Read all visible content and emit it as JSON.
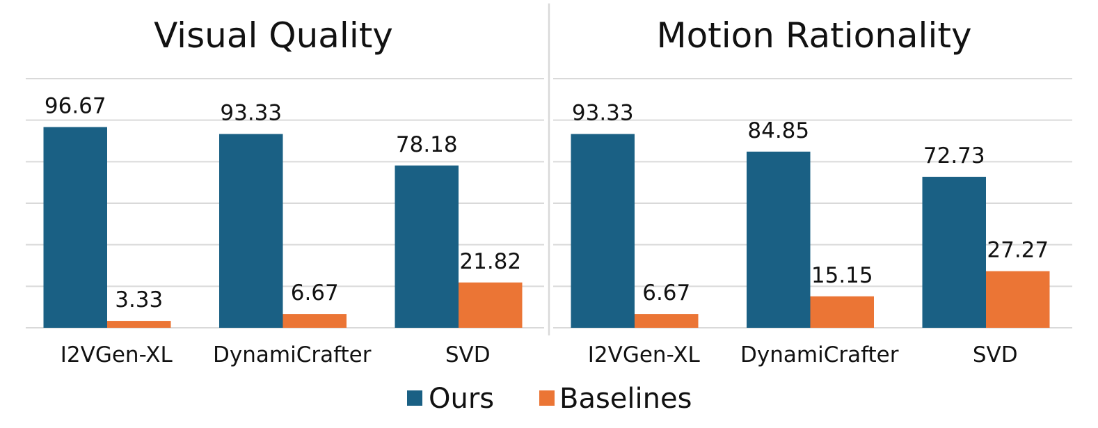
{
  "chart_data": [
    {
      "type": "bar",
      "title": "Visual Quality",
      "categories": [
        "I2VGen-XL",
        "DynamiCrafter",
        "SVD"
      ],
      "series": [
        {
          "name": "Ours",
          "values": [
            96.67,
            93.33,
            78.18
          ]
        },
        {
          "name": "Baselines",
          "values": [
            3.33,
            6.67,
            21.82
          ]
        }
      ],
      "value_labels": [
        [
          "96.67",
          "93.33",
          "78.18"
        ],
        [
          "3.33",
          "6.67",
          "21.82"
        ]
      ],
      "ylim": [
        0,
        120
      ],
      "y_grid_step": 20,
      "grid": true,
      "xlabel": "",
      "ylabel": ""
    },
    {
      "type": "bar",
      "title": "Motion Rationality",
      "categories": [
        "I2VGen-XL",
        "DynamiCrafter",
        "SVD"
      ],
      "series": [
        {
          "name": "Ours",
          "values": [
            93.33,
            84.85,
            72.73
          ]
        },
        {
          "name": "Baselines",
          "values": [
            6.67,
            15.15,
            27.27
          ]
        }
      ],
      "value_labels": [
        [
          "93.33",
          "84.85",
          "72.73"
        ],
        [
          "6.67",
          "15.15",
          "27.27"
        ]
      ],
      "ylim": [
        0,
        120
      ],
      "y_grid_step": 20,
      "grid": true,
      "xlabel": "",
      "ylabel": ""
    }
  ],
  "legend": {
    "placement": "bottom-center",
    "items": [
      {
        "name": "Ours",
        "color": "#1a6084"
      },
      {
        "name": "Baselines",
        "color": "#eb7535"
      }
    ]
  },
  "colors": {
    "ours": "#1a6084",
    "baselines": "#eb7535",
    "grid": "#d9d9d9"
  }
}
